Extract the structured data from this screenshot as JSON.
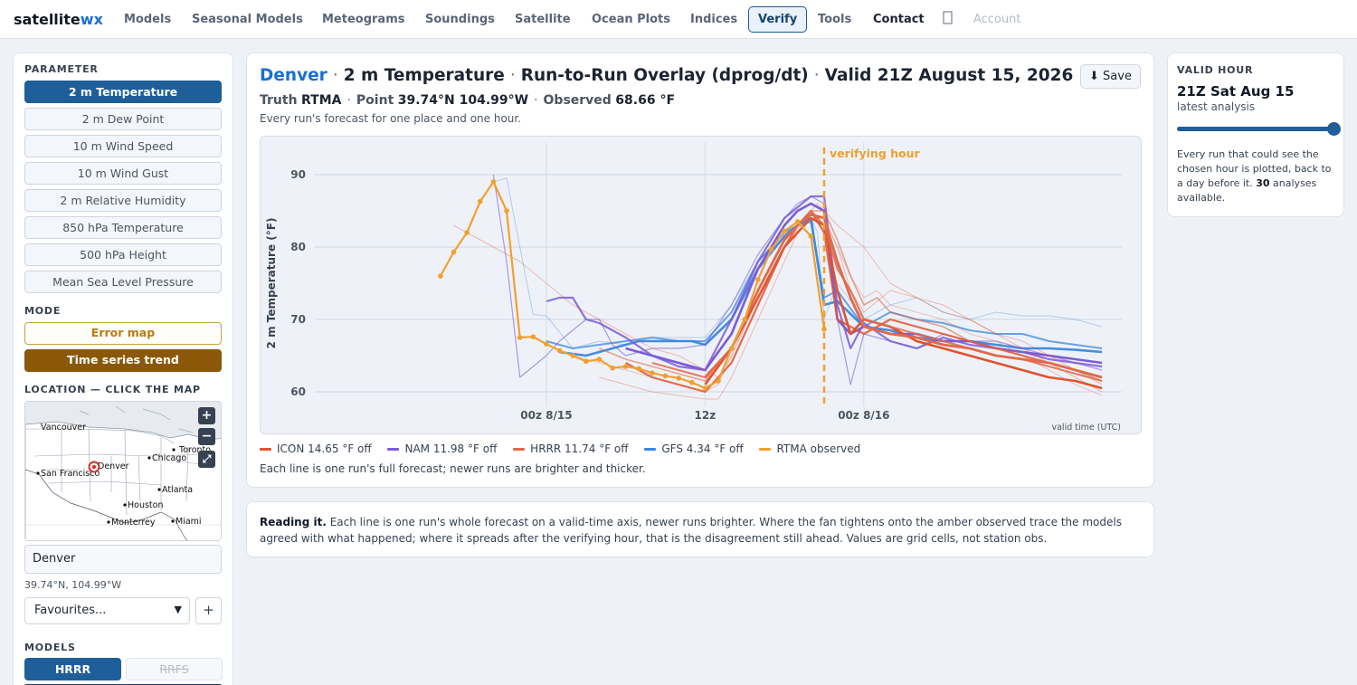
{
  "nav": {
    "brand_a": "satellite",
    "brand_b": "wx",
    "items": [
      {
        "label": "Models"
      },
      {
        "label": "Seasonal Models"
      },
      {
        "label": "Meteograms"
      },
      {
        "label": "Soundings"
      },
      {
        "label": "Satellite"
      },
      {
        "label": "Ocean Plots"
      },
      {
        "label": "Indices"
      },
      {
        "label": "Verify",
        "active": true
      },
      {
        "label": "Tools"
      },
      {
        "label": "Contact"
      },
      {
        "label": "Account"
      }
    ],
    "icon": "dark-mode-icon"
  },
  "sidebar": {
    "parameter_heading": "PARAMETER",
    "parameters": [
      {
        "label": "2 m Temperature",
        "active": true
      },
      {
        "label": "2 m Dew Point"
      },
      {
        "label": "10 m Wind Speed"
      },
      {
        "label": "10 m Wind Gust"
      },
      {
        "label": "2 m Relative Humidity"
      },
      {
        "label": "850 hPa Temperature"
      },
      {
        "label": "500 hPa Height"
      },
      {
        "label": "Mean Sea Level Pressure"
      }
    ],
    "mode_heading": "MODE",
    "modes": [
      {
        "label": "Error map"
      },
      {
        "label": "Time series trend",
        "active": true
      }
    ],
    "location_heading": "LOCATION — CLICK THE MAP",
    "map": {
      "cities": [
        "Vancouver",
        "Toronto",
        "Chicago",
        "Denver",
        "San Francisco",
        "Atlanta",
        "Houston",
        "Monterrey",
        "Miami"
      ],
      "zoom_in": "+",
      "zoom_out": "−",
      "fullscreen": "⤢"
    },
    "location_value": "Denver",
    "coords": "39.74°N, 104.99°W",
    "favourites": "Favourites...",
    "fav_add": "+",
    "models_heading": "MODELS",
    "models": [
      {
        "label": "HRRR",
        "active": true
      },
      {
        "label": "RRFS",
        "disabled": true
      }
    ]
  },
  "main": {
    "title_city": "Denver",
    "title_param": "2 m Temperature",
    "title_mode": "Run-to-Run Overlay (dprog/dt)",
    "title_valid": "Valid 21Z August 15, 2026",
    "save": "⬇ Save",
    "truth_label": "Truth",
    "truth_value": "RTMA",
    "point_label": "Point",
    "point_value": "39.74°N 104.99°W",
    "obs_label": "Observed",
    "obs_value": "68.66 °F",
    "desc": "Every run's forecast for one place and one hour.",
    "legend_note": "Each line is one run's full forecast; newer runs are brighter and thicker."
  },
  "chart_data": {
    "type": "line",
    "ylabel": "2 m Temperature (°F)",
    "xlabel": "valid time (UTC)",
    "x_unit": "hours from 00z 8/15",
    "xlim": [
      -17.5,
      43.5
    ],
    "ylim": [
      55.5,
      94.5
    ],
    "yticks": [
      60,
      70,
      80,
      90
    ],
    "xticks": [
      {
        "x": 0,
        "label": "00z 8/15"
      },
      {
        "x": 12,
        "label": "12z"
      },
      {
        "x": 24,
        "label": "00z 8/16"
      }
    ],
    "verify_x": 21,
    "verify_label": "verifying hour",
    "grid": true,
    "legend": [
      {
        "name": "ICON 14.65 °F off",
        "color": "#e0532e"
      },
      {
        "name": "NAM 11.98 °F off",
        "color": "#7b5cd6"
      },
      {
        "name": "HRRR 11.74 °F off",
        "color": "#e06a4a"
      },
      {
        "name": "GFS 4.34 °F off",
        "color": "#3b86e0"
      },
      {
        "name": "RTMA observed",
        "color": "#f0a030"
      }
    ],
    "observed": {
      "name": "RTMA observed",
      "x": [
        -8,
        -7,
        -6,
        -5,
        -4,
        -3,
        -2,
        -1,
        0,
        1,
        2,
        3,
        4,
        5,
        6,
        7,
        8,
        9,
        10,
        11,
        12,
        13,
        14,
        15,
        16,
        17,
        18,
        19,
        20,
        21
      ],
      "y": [
        76,
        79.3,
        82,
        86.3,
        89,
        85,
        67.5,
        67.6,
        66.6,
        65.7,
        65,
        64.2,
        64.5,
        63.3,
        63.5,
        63.2,
        62.6,
        62.2,
        61.9,
        61.3,
        60.5,
        61.5,
        66,
        70,
        75.5,
        79.7,
        82.2,
        83.5,
        81.5,
        68.66
      ]
    },
    "runs": [
      {
        "model": "GFS",
        "x": [
          -4,
          -3,
          -2,
          -1,
          0,
          2,
          4,
          6,
          8,
          10,
          12,
          14,
          16,
          18,
          19,
          20,
          20.5,
          21,
          22,
          24,
          26,
          28,
          30,
          32,
          34,
          36,
          38,
          40,
          42
        ],
        "y": [
          89,
          89.5,
          80,
          70.7,
          70.5,
          66,
          67,
          66.5,
          67.5,
          67.5,
          67.5,
          72,
          78,
          82,
          83.5,
          84,
          82,
          70,
          75,
          70,
          72,
          73,
          71,
          70,
          71,
          70.5,
          70.5,
          70,
          69
        ],
        "w": 1,
        "o": 0.35
      },
      {
        "model": "GFS",
        "x": [
          0,
          2,
          4,
          6,
          8,
          10,
          12,
          14,
          16,
          18,
          19,
          20,
          21,
          22,
          24,
          26,
          28,
          30,
          32,
          34,
          36,
          38,
          40,
          42
        ],
        "y": [
          67,
          66,
          66.5,
          67,
          67.5,
          67,
          67,
          71,
          78,
          82,
          83,
          83.5,
          73,
          74,
          69,
          71,
          70,
          69.5,
          68.5,
          68,
          68,
          67,
          66.5,
          66
        ],
        "w": 2,
        "o": 0.75
      },
      {
        "model": "GFS",
        "x": [
          1,
          3,
          5,
          7,
          9,
          11,
          12,
          14,
          16,
          18,
          19,
          20,
          21,
          22,
          24,
          26,
          28,
          30,
          32,
          34,
          36,
          38,
          40,
          42
        ],
        "y": [
          65.5,
          65,
          66,
          67,
          67,
          67,
          66.5,
          70,
          77,
          81.5,
          83,
          84,
          72,
          72.5,
          69,
          68.5,
          67.5,
          67,
          67,
          66.5,
          66,
          66,
          65.8,
          65.5
        ],
        "w": 2.6,
        "o": 0.95
      },
      {
        "model": "NAM",
        "x": [
          -4,
          -3,
          -2,
          0,
          1,
          2,
          3,
          4,
          5,
          6,
          8,
          10,
          12,
          14,
          16,
          18,
          19,
          20,
          21,
          22,
          23,
          24,
          26,
          28,
          30,
          32,
          34,
          36,
          38,
          40,
          42
        ],
        "y": [
          90,
          78,
          62,
          65,
          67,
          68.5,
          70,
          70,
          66.5,
          65,
          66,
          66,
          66.5,
          72,
          79,
          84,
          86,
          87,
          86,
          70,
          61,
          68,
          67,
          66,
          68,
          67,
          67,
          66,
          65,
          64,
          63
        ],
        "w": 1.2,
        "o": 0.6
      },
      {
        "model": "NAM",
        "x": [
          0,
          1,
          2,
          3,
          4,
          6,
          8,
          10,
          12,
          14,
          16,
          18,
          19,
          20,
          21,
          22,
          23,
          24,
          26,
          28,
          30,
          32,
          34,
          36,
          38,
          40,
          42
        ],
        "y": [
          72.5,
          73,
          73,
          70,
          69.5,
          67.5,
          65,
          63.5,
          63,
          70,
          78,
          84,
          85.5,
          87,
          87,
          72,
          66,
          69.5,
          67,
          66,
          67.5,
          66.5,
          66,
          65.5,
          64.5,
          64,
          63.5
        ],
        "w": 2.2,
        "o": 0.85
      },
      {
        "model": "NAM",
        "x": [
          6,
          8,
          10,
          12,
          14,
          16,
          18,
          19,
          20,
          21,
          22,
          23,
          24,
          26,
          28,
          30,
          32,
          34,
          36,
          38,
          40,
          42
        ],
        "y": [
          66,
          65,
          64,
          63,
          68,
          77,
          83,
          85,
          86,
          85,
          70,
          68,
          69,
          68,
          68,
          67,
          67,
          66,
          65.5,
          65,
          64.5,
          64
        ],
        "w": 2.6,
        "o": 1
      },
      {
        "model": "ICON",
        "x": [
          -7,
          -6,
          -4,
          -2,
          0,
          2,
          4,
          6,
          8,
          10,
          12,
          13,
          14,
          16,
          18,
          19,
          20,
          20.5,
          21,
          22,
          24,
          26,
          28,
          30,
          32,
          34,
          36,
          38,
          40,
          42
        ],
        "y": [
          83,
          82,
          80,
          78,
          75,
          72,
          70,
          68,
          66,
          65,
          63,
          62,
          65,
          73,
          80,
          82.5,
          85,
          86,
          85,
          83,
          80,
          75,
          73,
          72,
          70,
          68,
          66,
          64,
          62,
          60
        ],
        "w": 1,
        "o": 0.35
      },
      {
        "model": "ICON",
        "x": [
          4,
          6,
          8,
          10,
          12,
          13,
          14,
          16,
          18,
          19,
          20,
          21,
          22,
          23,
          24,
          26,
          28,
          30,
          32,
          34,
          36,
          38,
          40,
          42
        ],
        "y": [
          62,
          61,
          60,
          59.5,
          59,
          59,
          62,
          70,
          78,
          82,
          84,
          84,
          80,
          74,
          71,
          74,
          73,
          71,
          70,
          68,
          67,
          65,
          63,
          61
        ],
        "w": 1,
        "o": 0.35
      },
      {
        "model": "ICON",
        "x": [
          6,
          8,
          10,
          12,
          14,
          16,
          18,
          19,
          20,
          21,
          22,
          24,
          26,
          28,
          30,
          32,
          34,
          36,
          38,
          40,
          42
        ],
        "y": [
          64,
          62,
          61,
          60,
          64,
          72,
          80,
          83,
          85,
          82,
          70,
          68,
          70,
          69,
          68,
          67,
          66,
          65,
          64,
          63,
          62
        ],
        "w": 2.2,
        "o": 0.85
      },
      {
        "model": "ICON",
        "x": [
          12,
          14,
          16,
          18,
          19,
          20,
          21,
          22,
          23,
          24,
          26,
          28,
          30,
          32,
          34,
          36,
          38,
          40,
          42
        ],
        "y": [
          61,
          66,
          73,
          80,
          82,
          84,
          83,
          74,
          68,
          70,
          69,
          67,
          66,
          65,
          64,
          63,
          62,
          61.5,
          60.5
        ],
        "w": 2.6,
        "o": 1
      },
      {
        "model": "HRRR",
        "x": [
          2,
          4,
          6,
          8,
          10,
          12,
          13,
          14,
          16,
          18,
          19,
          20,
          21,
          22,
          23,
          24,
          25,
          26,
          28,
          30,
          32,
          34,
          36,
          38,
          40,
          42
        ],
        "y": [
          65,
          64,
          63,
          62,
          61,
          60,
          61,
          65,
          73,
          80,
          82,
          84,
          84,
          80,
          76,
          73,
          74,
          72,
          71,
          70,
          68,
          67,
          65,
          63,
          61,
          59.5
        ],
        "w": 1,
        "o": 0.35
      },
      {
        "model": "HRRR",
        "x": [
          4,
          6,
          8,
          10,
          12,
          14,
          16,
          18,
          19,
          20,
          21,
          22,
          23,
          24,
          25,
          26,
          28,
          30,
          32,
          34,
          36,
          38,
          40,
          42
        ],
        "y": [
          66,
          64.5,
          63.5,
          62.5,
          61.5,
          66,
          74,
          81,
          83,
          85,
          85,
          81,
          76,
          72,
          73,
          71,
          70,
          69,
          67,
          66,
          65,
          64,
          63,
          61.5
        ],
        "w": 1.6,
        "o": 0.6
      },
      {
        "model": "HRRR",
        "x": [
          8,
          10,
          12,
          14,
          16,
          18,
          19,
          20,
          21,
          22,
          23,
          24,
          26,
          28,
          30,
          32,
          34,
          36,
          38,
          40,
          42
        ],
        "y": [
          64,
          63,
          62,
          66,
          74,
          81,
          83,
          85,
          83,
          77,
          74,
          70,
          69,
          68,
          67,
          66,
          65,
          64.5,
          63.5,
          62.5,
          61.5
        ],
        "w": 2.2,
        "o": 0.85
      },
      {
        "model": "HRRR",
        "x": [
          12,
          14,
          16,
          18,
          19,
          20,
          21,
          22,
          23,
          24,
          26,
          28,
          30,
          32,
          34,
          36,
          38,
          40,
          42
        ],
        "y": [
          62,
          66,
          74,
          81,
          83,
          84.5,
          84,
          78,
          73,
          69,
          68,
          67.5,
          66.5,
          66,
          65,
          64.5,
          64,
          63,
          62
        ],
        "w": 2.8,
        "o": 1
      }
    ]
  },
  "reading": {
    "lead": "Reading it.",
    "body": " Each line is one run's whole forecast on a valid-time axis, newer runs brighter. Where the fan tightens onto the amber observed trace the models agreed with what happened; where it spreads after the verifying hour, that is the disagreement still ahead. Values are grid cells, not station obs."
  },
  "valid_hour": {
    "heading": "VALID HOUR",
    "value": "21Z Sat Aug 15",
    "sub": "latest analysis",
    "slider_fraction": 1.0,
    "note_a": "Every run that could see the chosen hour is plotted, back to a day before it. ",
    "note_b": "30",
    "note_c": " analyses available."
  }
}
